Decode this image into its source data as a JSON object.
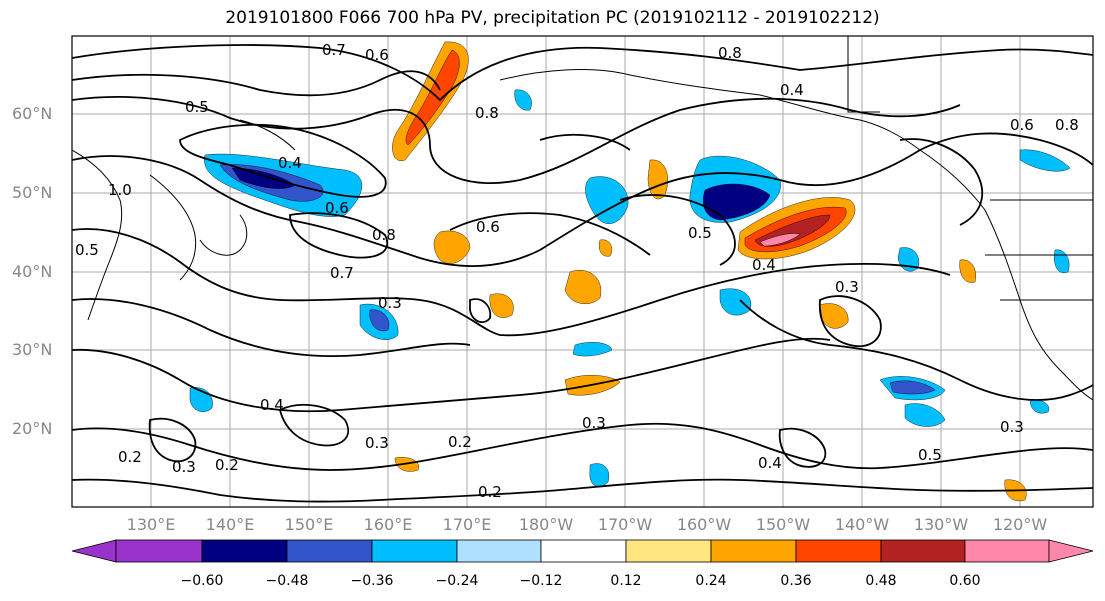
{
  "title": "2019101800 F066 700 hPa PV, precipitation PC (2019102112 - 2019102212)",
  "lat_labels": [
    "60°N",
    "50°N",
    "40°N",
    "30°N",
    "20°N"
  ],
  "lon_labels": [
    "130°E",
    "140°E",
    "150°E",
    "160°E",
    "170°E",
    "180°W",
    "170°W",
    "160°W",
    "150°W",
    "140°W",
    "130°W",
    "120°W"
  ],
  "contour_labels": [
    "0.7",
    "0.6",
    "0.8",
    "0.5",
    "0.4",
    "0.6",
    "0.8",
    "1.0",
    "0.4",
    "0.6",
    "0.8",
    "0.5",
    "0.7",
    "0.3",
    "0.4",
    "0.3",
    "0.2",
    "0.3",
    "0.2",
    "0.2",
    "0.3",
    "0.4",
    "0.3",
    "0.5",
    "0.3",
    "0.2",
    "0.4",
    "0.5",
    "0.6",
    "0.8"
  ],
  "colorbar": {
    "colors": [
      "#9933cc",
      "#000080",
      "#3355cc",
      "#00bfff",
      "#b0e0ff",
      "#ffffff",
      "#ffe680",
      "#ffa500",
      "#ff4500",
      "#b22222",
      "#ff88aa"
    ],
    "labels": [
      "−0.60",
      "−0.48",
      "−0.36",
      "−0.24",
      "−0.12",
      "0.12",
      "0.24",
      "0.36",
      "0.48",
      "0.60"
    ]
  }
}
